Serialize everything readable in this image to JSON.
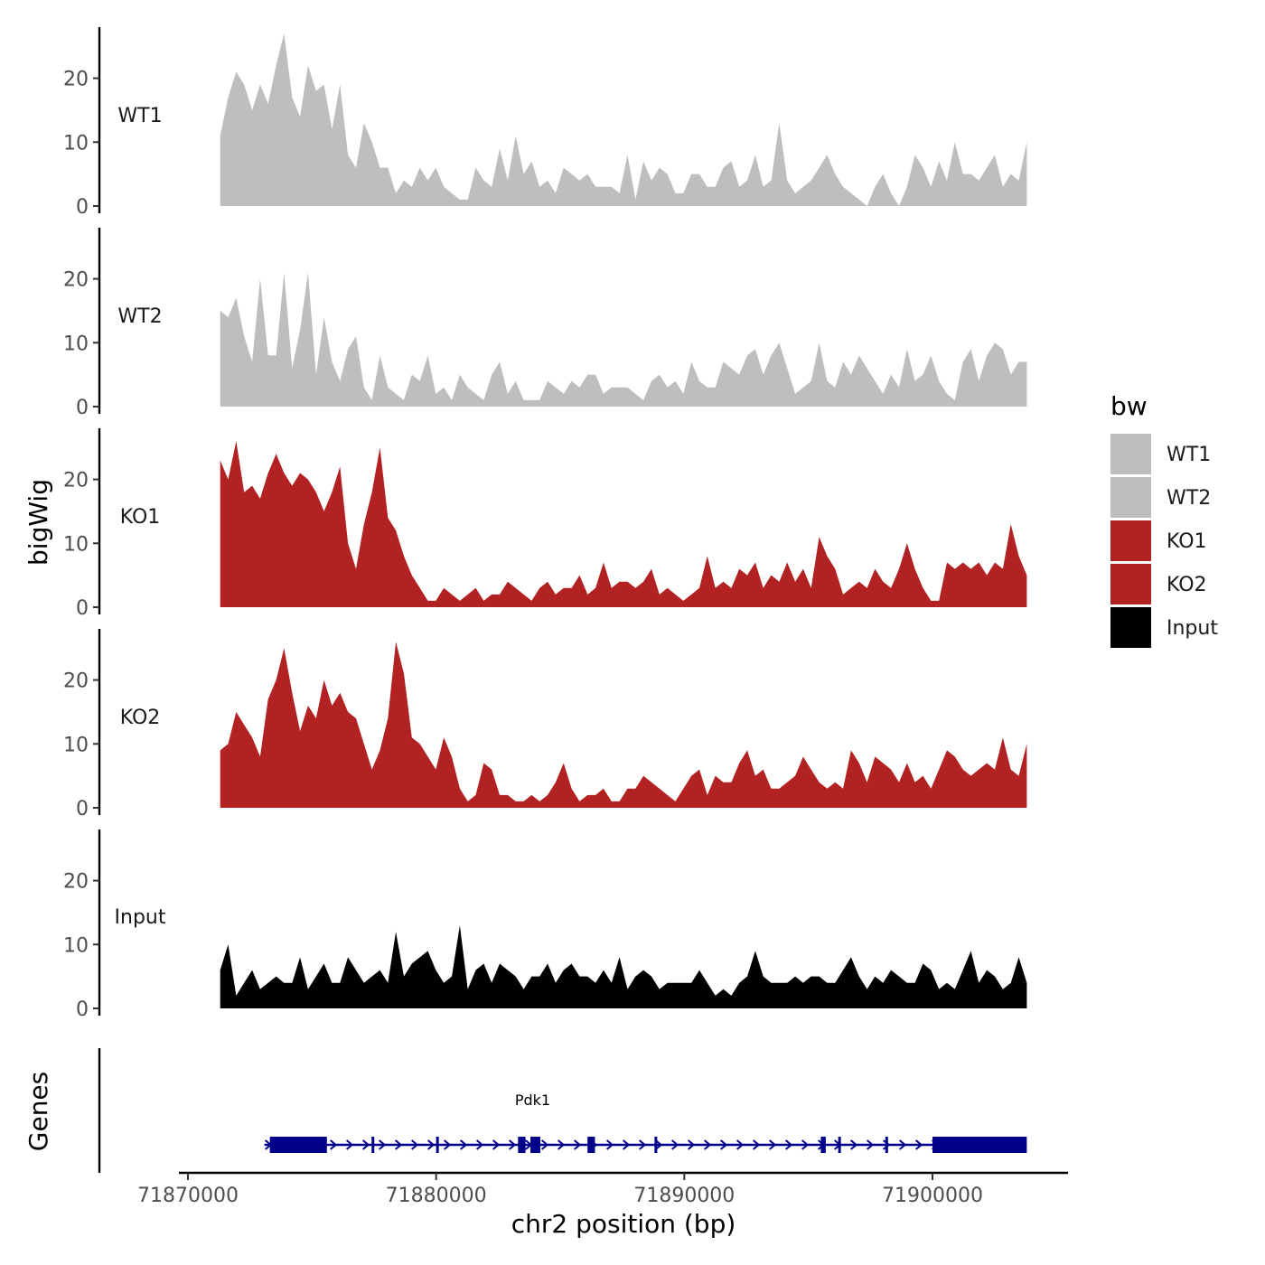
{
  "chart_data": {
    "type": "area",
    "title": "",
    "xlabel": "chr2 position (bp)",
    "ylabel": "bigWig",
    "genes_label": "Genes",
    "xlim": [
      71870000,
      71905500
    ],
    "x_ticks": [
      71870000,
      71880000,
      71890000,
      71900000
    ],
    "x_tick_labels": [
      "71870000",
      "71880000",
      "71890000",
      "71900000"
    ],
    "ylim": [
      0,
      28
    ],
    "y_ticks": [
      0,
      10,
      20
    ],
    "y_tick_labels": [
      "0",
      "10",
      "20"
    ],
    "data_range": [
      71871300,
      71903800
    ],
    "legend": {
      "title": "bw",
      "entries": [
        {
          "label": "WT1",
          "color": "#BEBEBE"
        },
        {
          "label": "WT2",
          "color": "#BEBEBE"
        },
        {
          "label": "KO1",
          "color": "#B22222"
        },
        {
          "label": "KO2",
          "color": "#B22222"
        },
        {
          "label": "Input",
          "color": "#000000"
        }
      ]
    },
    "series": [
      {
        "name": "WT1",
        "color": "#BEBEBE",
        "values": [
          11,
          17,
          21,
          19,
          15,
          19,
          16,
          22,
          27,
          17,
          14,
          22,
          18,
          19,
          12,
          19,
          8,
          6,
          13,
          10,
          6,
          6,
          2,
          4,
          3,
          6,
          4,
          6,
          3,
          2,
          1,
          1,
          6,
          4,
          3,
          9,
          4,
          11,
          5,
          7,
          3,
          4,
          2,
          6,
          5,
          4,
          5,
          3,
          3,
          3,
          2,
          8,
          1,
          7,
          4,
          6,
          5,
          2,
          2,
          5,
          5,
          3,
          3,
          6,
          7,
          3,
          4,
          8,
          3,
          4,
          13,
          4,
          2,
          3,
          4,
          6,
          8,
          5,
          3,
          2,
          1,
          0,
          3,
          5,
          2,
          0,
          3,
          8,
          6,
          3,
          7,
          4,
          10,
          5,
          5,
          4,
          6,
          8,
          3,
          5,
          4,
          10
        ]
      },
      {
        "name": "WT2",
        "color": "#BEBEBE",
        "values": [
          15,
          14,
          17,
          11,
          7,
          20,
          8,
          8,
          21,
          6,
          12,
          21,
          5,
          14,
          7,
          4,
          9,
          11,
          3,
          1,
          8,
          3,
          2,
          1,
          5,
          4,
          8,
          2,
          3,
          1,
          5,
          3,
          2,
          1,
          5,
          7,
          2,
          4,
          1,
          1,
          1,
          4,
          3,
          2,
          4,
          3,
          5,
          5,
          2,
          3,
          3,
          3,
          2,
          1,
          4,
          5,
          3,
          4,
          2,
          7,
          4,
          3,
          3,
          7,
          6,
          5,
          8,
          9,
          5,
          8,
          10,
          6,
          2,
          3,
          4,
          10,
          4,
          3,
          7,
          5,
          8,
          6,
          4,
          2,
          5,
          3,
          9,
          4,
          5,
          8,
          4,
          2,
          1,
          7,
          9,
          4,
          8,
          10,
          9,
          5,
          7,
          7
        ]
      },
      {
        "name": "KO1",
        "color": "#B22222",
        "values": [
          23,
          20,
          26,
          18,
          19,
          17,
          21,
          24,
          21,
          19,
          21,
          20,
          18,
          15,
          18,
          22,
          10,
          6,
          13,
          18,
          25,
          14,
          12,
          8,
          5,
          3,
          1,
          1,
          3,
          2,
          1,
          2,
          3,
          1,
          2,
          2,
          4,
          3,
          2,
          1,
          3,
          4,
          2,
          3,
          3,
          5,
          2,
          3,
          7,
          3,
          4,
          4,
          3,
          4,
          6,
          2,
          3,
          2,
          1,
          2,
          3,
          8,
          3,
          4,
          3,
          6,
          5,
          7,
          3,
          5,
          4,
          7,
          4,
          6,
          3,
          11,
          8,
          6,
          2,
          3,
          4,
          3,
          6,
          4,
          3,
          6,
          10,
          6,
          3,
          1,
          1,
          7,
          6,
          7,
          6,
          7,
          5,
          7,
          6,
          13,
          8,
          5
        ]
      },
      {
        "name": "KO2",
        "color": "#B22222",
        "values": [
          9,
          10,
          15,
          13,
          11,
          8,
          17,
          20,
          25,
          18,
          12,
          16,
          14,
          20,
          16,
          18,
          15,
          14,
          10,
          6,
          9,
          14,
          26,
          21,
          11,
          10,
          8,
          6,
          11,
          8,
          3,
          1,
          2,
          7,
          6,
          2,
          2,
          1,
          1,
          2,
          1,
          2,
          4,
          7,
          3,
          1,
          2,
          2,
          3,
          1,
          1,
          3,
          3,
          5,
          4,
          3,
          2,
          1,
          3,
          5,
          6,
          2,
          5,
          4,
          4,
          7,
          9,
          5,
          6,
          3,
          3,
          4,
          5,
          8,
          6,
          4,
          3,
          4,
          3,
          9,
          7,
          4,
          8,
          7,
          6,
          4,
          7,
          4,
          5,
          3,
          6,
          9,
          8,
          6,
          5,
          6,
          7,
          6,
          11,
          6,
          5,
          10
        ]
      },
      {
        "name": "Input",
        "color": "#000000",
        "values": [
          6,
          10,
          2,
          4,
          6,
          3,
          4,
          5,
          4,
          4,
          8,
          3,
          5,
          7,
          4,
          4,
          8,
          6,
          4,
          5,
          6,
          4,
          12,
          5,
          7,
          8,
          9,
          6,
          4,
          5,
          13,
          3,
          6,
          7,
          4,
          7,
          6,
          5,
          3,
          5,
          5,
          7,
          4,
          6,
          7,
          5,
          5,
          4,
          6,
          4,
          8,
          3,
          5,
          6,
          5,
          3,
          4,
          4,
          4,
          4,
          6,
          4,
          2,
          3,
          2,
          4,
          5,
          9,
          5,
          4,
          4,
          4,
          5,
          4,
          5,
          5,
          4,
          4,
          6,
          8,
          5,
          3,
          5,
          4,
          6,
          5,
          4,
          4,
          7,
          6,
          3,
          4,
          3,
          6,
          9,
          4,
          6,
          5,
          3,
          4,
          8,
          4
        ]
      }
    ],
    "gene": {
      "name": "Pdk1",
      "strand": "+",
      "start": 71873300,
      "end": 71903800,
      "exons": [
        [
          71873300,
          71875600
        ],
        [
          71877400,
          71877500
        ],
        [
          71880000,
          71880100
        ],
        [
          71883300,
          71883600
        ],
        [
          71883800,
          71884200
        ],
        [
          71886100,
          71886400
        ],
        [
          71888800,
          71888900
        ],
        [
          71895500,
          71895700
        ],
        [
          71896200,
          71896300
        ],
        [
          71898100,
          71898200
        ],
        [
          71900000,
          71903800
        ]
      ]
    }
  }
}
